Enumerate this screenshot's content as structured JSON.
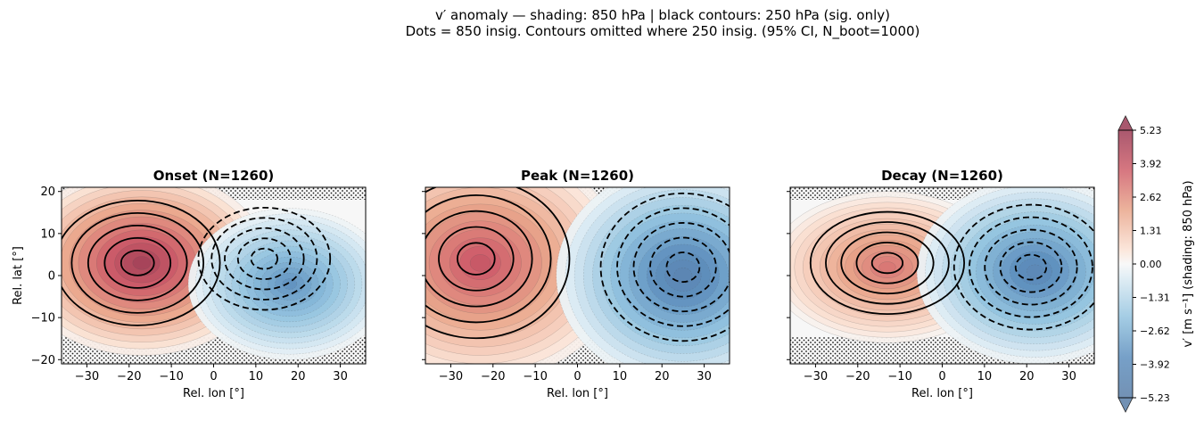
{
  "suptitle": {
    "line1": "v′ anomaly — shading: 850 hPa  |  black contours: 250 hPa (sig. only)",
    "line2": "Dots = 850 insig.  Contours omitted where 250 insig.  (95% CI, N_boot=1000)"
  },
  "colors": {
    "negative": "#2166ac",
    "neutral": "#f7f7f7",
    "positive": "#b2182b",
    "contour": "#000000"
  },
  "chart_data": [
    {
      "type": "heatmap",
      "title": "Onset  (N=1260)",
      "xlabel": "Rel. lon [°]",
      "ylabel": "Rel. lat [°]",
      "xlim": [
        -36,
        36
      ],
      "ylim": [
        -21,
        21
      ],
      "xticks": [
        "−30",
        "−20",
        "−10",
        "0",
        "10",
        "20",
        "30"
      ],
      "yticks": [
        "20",
        "10",
        "0",
        "−10",
        "−20"
      ],
      "shading_centers": [
        {
          "lon": -17,
          "lat": 3,
          "value": 5.0
        },
        {
          "lon": 18,
          "lat": -2,
          "value": -3.6
        }
      ],
      "contours_250hPa": [
        {
          "lon": -18,
          "lat": 3,
          "sign": "positive"
        },
        {
          "lon": 12,
          "lat": 4,
          "sign": "negative"
        }
      ]
    },
    {
      "type": "heatmap",
      "title": "Peak  (N=1260)",
      "xlabel": "Rel. lon [°]",
      "ylabel": "",
      "xlim": [
        -36,
        36
      ],
      "ylim": [
        -21,
        21
      ],
      "xticks": [
        "−30",
        "−20",
        "−10",
        "0",
        "10",
        "20",
        "30"
      ],
      "yticks": [
        "",
        "",
        "",
        "",
        ""
      ],
      "shading_centers": [
        {
          "lon": -23,
          "lat": 3,
          "value": 4.0
        },
        {
          "lon": 25,
          "lat": 0,
          "value": -4.6
        }
      ],
      "contours_250hPa": [
        {
          "lon": -24,
          "lat": 4,
          "sign": "positive"
        },
        {
          "lon": 25,
          "lat": 2,
          "sign": "negative"
        }
      ]
    },
    {
      "type": "heatmap",
      "title": "Decay  (N=1260)",
      "xlabel": "Rel. lon [°]",
      "ylabel": "",
      "xlim": [
        -36,
        36
      ],
      "ylim": [
        -21,
        21
      ],
      "xticks": [
        "−30",
        "−20",
        "−10",
        "0",
        "10",
        "20",
        "30"
      ],
      "yticks": [
        "",
        "",
        "",
        "",
        ""
      ],
      "shading_centers": [
        {
          "lon": -13,
          "lat": 2,
          "value": 3.2
        },
        {
          "lon": 22,
          "lat": 1,
          "value": -4.3
        }
      ],
      "contours_250hPa": [
        {
          "lon": -13,
          "lat": 3,
          "sign": "positive"
        },
        {
          "lon": 21,
          "lat": 2,
          "sign": "negative"
        }
      ]
    }
  ],
  "colorbar": {
    "label": "v′ [m s⁻¹]  (shading: 850 hPa)",
    "range": [
      -5.23,
      5.23
    ],
    "ticks": [
      "5.23",
      "3.92",
      "2.62",
      "1.31",
      "0.00",
      "−1.31",
      "−2.62",
      "−3.92",
      "−5.23"
    ]
  }
}
